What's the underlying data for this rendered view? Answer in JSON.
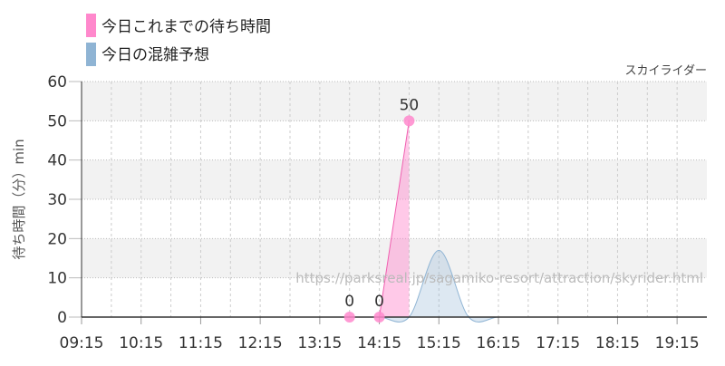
{
  "chart_data": {
    "type": "area",
    "title": "スカイライダー",
    "xlabel": "",
    "ylabel": "待ち時間（分）min",
    "ylim": [
      0,
      60
    ],
    "yticks": [
      0,
      10,
      20,
      30,
      40,
      50,
      60
    ],
    "xlim": [
      "09:15",
      "19:45"
    ],
    "xticks": [
      "09:15",
      "10:15",
      "11:15",
      "12:15",
      "13:15",
      "14:15",
      "15:15",
      "16:15",
      "17:15",
      "18:15",
      "19:15"
    ],
    "grid": true,
    "legend_placement": "top-left",
    "watermark": "https://parksreal.jp/sagamiko-resort/attraction/skyrider.html",
    "series": [
      {
        "name": "今日これまでの待ち時間",
        "color": "#ff88cc",
        "x": [
          "13:45",
          "14:15",
          "14:45"
        ],
        "values": [
          0,
          0,
          50
        ],
        "data_labels": [
          "0",
          "0",
          "50"
        ]
      },
      {
        "name": "今日の混雑予想",
        "color": "#8fb4d4",
        "x": [
          "09:15",
          "09:45",
          "10:15",
          "10:45",
          "11:15",
          "11:45",
          "12:15",
          "12:45",
          "13:15",
          "13:45",
          "14:15",
          "14:45",
          "15:15",
          "15:45",
          "16:15",
          "16:45",
          "17:15",
          "17:45",
          "18:15",
          "18:45",
          "19:15",
          "19:45"
        ],
        "values": [
          0,
          0,
          0,
          0,
          0,
          0,
          0,
          0,
          0,
          0,
          0,
          0,
          17,
          0,
          0,
          0,
          0,
          0,
          0,
          0,
          0,
          0
        ]
      }
    ]
  }
}
